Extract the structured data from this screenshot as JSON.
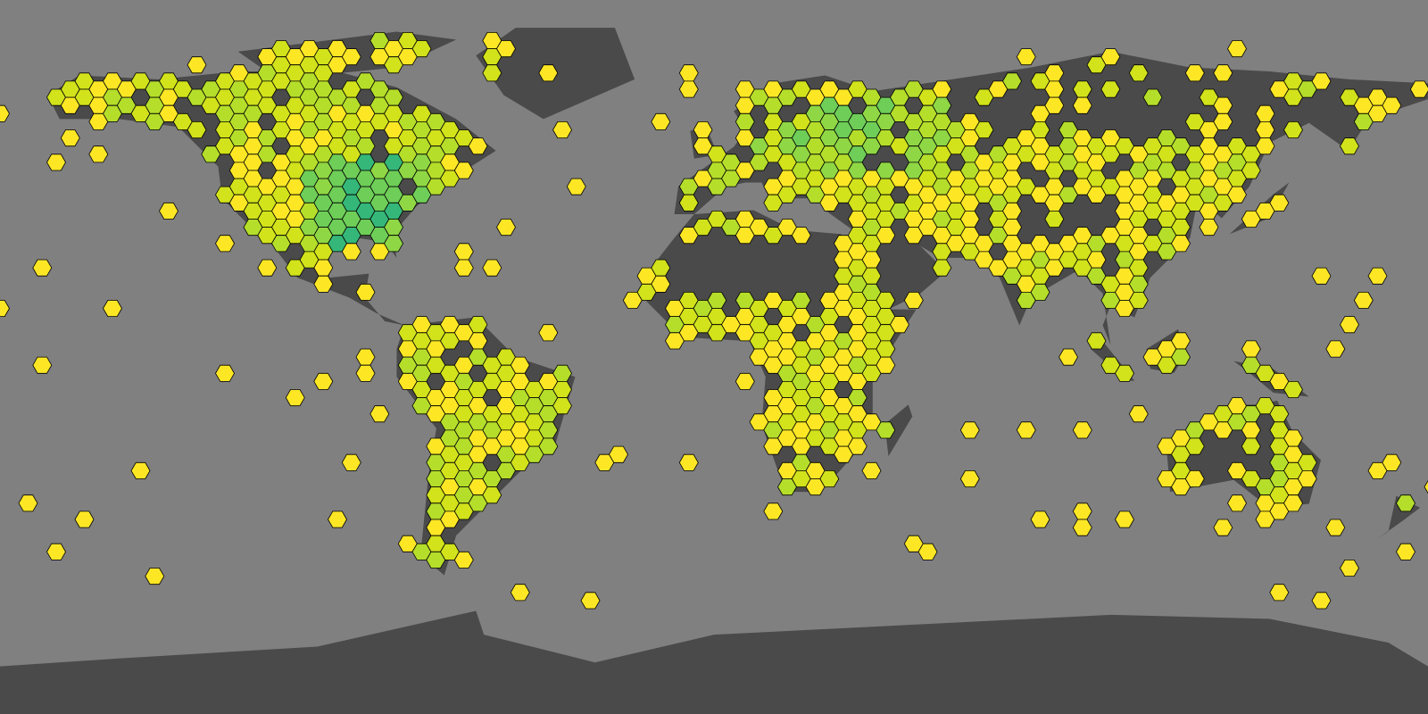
{
  "map": {
    "projection": "equirectangular",
    "ocean_color": "#808080",
    "land_color": "#4a4a4a",
    "hex_stroke": "#000000",
    "palette": [
      "#fde725",
      "#d2e21b",
      "#b5de2b",
      "#8fd744",
      "#6ece58",
      "#35b779",
      "#1f9e89"
    ],
    "layer": "hexbin"
  }
}
